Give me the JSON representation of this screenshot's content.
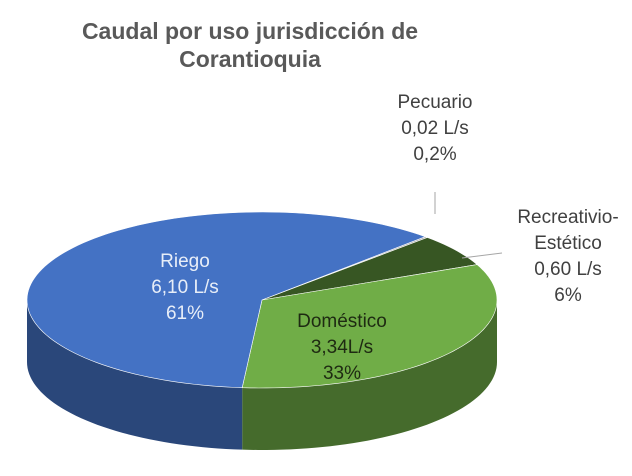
{
  "chart_data": {
    "type": "pie",
    "title": [
      "Caudal por uso jurisdicción de",
      "Corantioquia"
    ],
    "categories": [
      "Pecuario",
      "Recreativio-Estético",
      "Doméstico",
      "Riego"
    ],
    "values": [
      0.2,
      6,
      33,
      61
    ],
    "value_labels": [
      "0,2%",
      "6%",
      "33%",
      "61%"
    ],
    "flow_labels": [
      "0,02 L/s",
      "0,60 L/s",
      "3,34L/s",
      "6,10 L/s"
    ],
    "colors": [
      "#a5a5a5",
      "#375623",
      "#70ad47",
      "#4472c4"
    ],
    "three_d": true
  }
}
